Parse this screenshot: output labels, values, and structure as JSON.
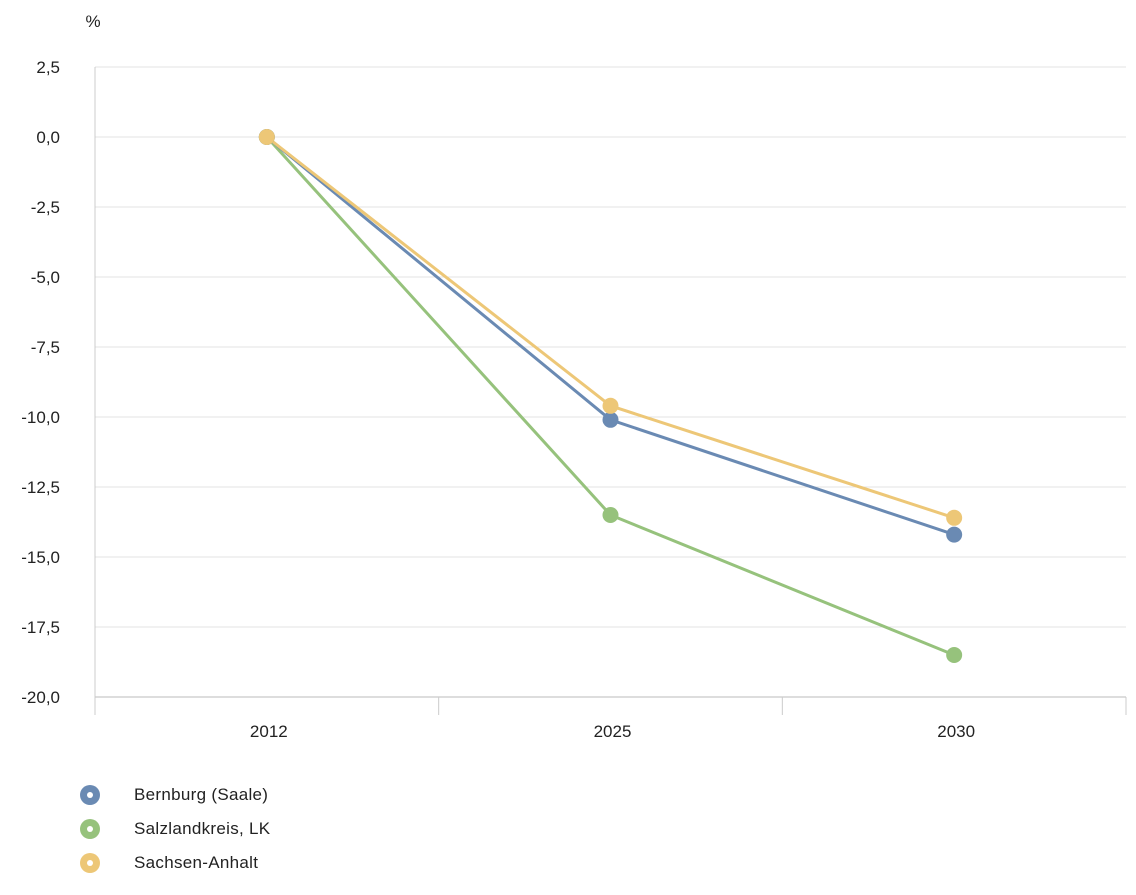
{
  "chart_data": {
    "type": "line",
    "unit_label": "%",
    "categories": [
      "2012",
      "2025",
      "2030"
    ],
    "ylim": [
      -20,
      2.5
    ],
    "yticks": [
      "2,5",
      "0,0",
      "-2,5",
      "-5,0",
      "-7,5",
      "-10,0",
      "-12,5",
      "-15,0",
      "-17,5",
      "-20,0"
    ],
    "ytick_values": [
      2.5,
      0,
      -2.5,
      -5,
      -7.5,
      -10,
      -12.5,
      -15,
      -17.5,
      -20
    ],
    "grid": true,
    "legend_position": "bottom-left",
    "series": [
      {
        "name": "Bernburg (Saale)",
        "color": "#6a8ab3",
        "values": [
          0,
          -10.1,
          -14.2
        ]
      },
      {
        "name": "Salzlandkreis, LK",
        "color": "#96c27c",
        "values": [
          0,
          -13.5,
          -18.5
        ]
      },
      {
        "name": "Sachsen-Anhalt",
        "color": "#edc777",
        "values": [
          0,
          -9.6,
          -13.6
        ]
      }
    ]
  }
}
